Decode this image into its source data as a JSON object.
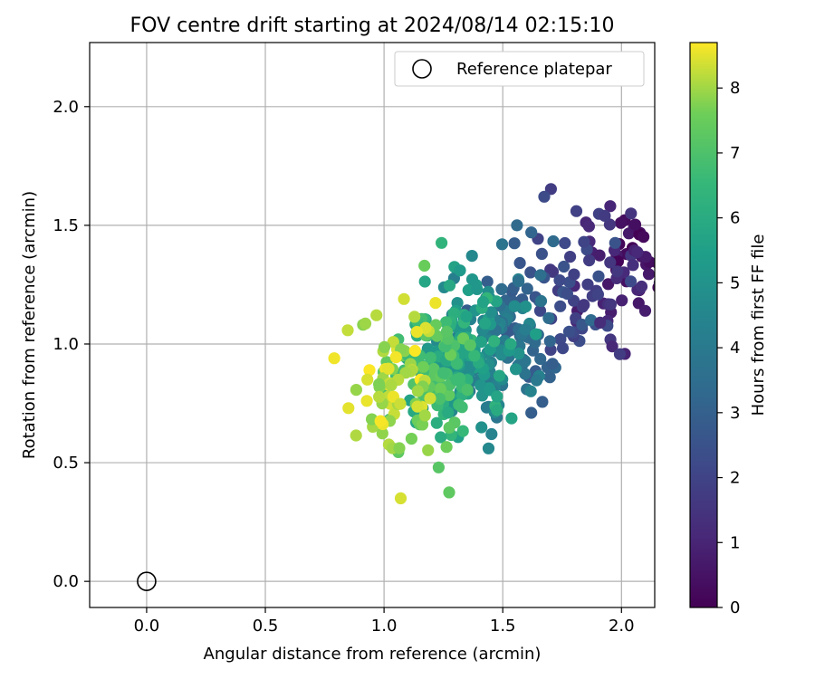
{
  "chart_data": {
    "type": "scatter",
    "title": "FOV centre drift starting at 2024/08/14 02:15:10",
    "xlabel": "Angular distance from reference (arcmin)",
    "ylabel": "Rotation from reference (arcmin)",
    "xlim": [
      -0.24,
      2.14
    ],
    "ylim": [
      -0.11,
      2.27
    ],
    "x_ticks": [
      "0.0",
      "0.5",
      "1.0",
      "1.5",
      "2.0"
    ],
    "y_ticks": [
      "0.0",
      "0.5",
      "1.0",
      "1.5",
      "2.0"
    ],
    "grid": true,
    "legend": {
      "position": "top-right",
      "label": "Reference platepar"
    },
    "reference_point": {
      "x": 0.0,
      "y": 0.0
    },
    "colorbar": {
      "label": "Hours from first FF file",
      "range": [
        0,
        8.7
      ],
      "ticks": [
        "0",
        "1",
        "2",
        "3",
        "4",
        "5",
        "6",
        "7",
        "8"
      ],
      "colormap": "viridis"
    },
    "clusters": [
      {
        "h0": 0.0,
        "h1": 0.7,
        "x": 2.06,
        "y": 1.36,
        "sx": 0.07,
        "sy": 0.11,
        "n": 26
      },
      {
        "h0": 0.7,
        "h1": 1.6,
        "x": 1.97,
        "y": 1.33,
        "sx": 0.08,
        "sy": 0.14,
        "n": 34
      },
      {
        "h0": 1.6,
        "h1": 2.6,
        "x": 1.78,
        "y": 1.22,
        "sx": 0.11,
        "sy": 0.17,
        "n": 46
      },
      {
        "h0": 2.6,
        "h1": 3.6,
        "x": 1.6,
        "y": 1.08,
        "sx": 0.1,
        "sy": 0.15,
        "n": 60
      },
      {
        "h0": 3.6,
        "h1": 4.6,
        "x": 1.47,
        "y": 1.02,
        "sx": 0.09,
        "sy": 0.15,
        "n": 70
      },
      {
        "h0": 4.6,
        "h1": 5.6,
        "x": 1.37,
        "y": 0.98,
        "sx": 0.09,
        "sy": 0.15,
        "n": 72
      },
      {
        "h0": 5.6,
        "h1": 6.6,
        "x": 1.29,
        "y": 0.94,
        "sx": 0.09,
        "sy": 0.16,
        "n": 72
      },
      {
        "h0": 6.6,
        "h1": 7.6,
        "x": 1.2,
        "y": 0.9,
        "sx": 0.09,
        "sy": 0.16,
        "n": 72
      },
      {
        "h0": 7.6,
        "h1": 8.7,
        "x": 1.04,
        "y": 0.86,
        "sx": 0.1,
        "sy": 0.16,
        "n": 66
      }
    ],
    "highlighted_points": [
      {
        "x": 1.07,
        "y": 0.35,
        "h": 8.4
      },
      {
        "x": 1.44,
        "y": 0.56,
        "h": 4.6
      },
      {
        "x": 1.62,
        "y": 0.71,
        "h": 2.9
      },
      {
        "x": 1.56,
        "y": 1.5,
        "h": 3.4
      },
      {
        "x": 1.62,
        "y": 1.47,
        "h": 3.2
      },
      {
        "x": 1.81,
        "y": 1.56,
        "h": 1.9
      },
      {
        "x": 1.93,
        "y": 1.54,
        "h": 1.7
      },
      {
        "x": 2.04,
        "y": 1.55,
        "h": 1.5
      },
      {
        "x": 2.1,
        "y": 1.14,
        "h": 0.8
      },
      {
        "x": 0.79,
        "y": 0.94,
        "h": 8.6
      },
      {
        "x": 0.85,
        "y": 0.73,
        "h": 8.5
      },
      {
        "x": 1.23,
        "y": 0.48,
        "h": 7.2
      },
      {
        "x": 1.32,
        "y": 1.31,
        "h": 5.3
      },
      {
        "x": 1.17,
        "y": 1.33,
        "h": 7.5
      },
      {
        "x": 1.91,
        "y": 1.09,
        "h": 1.3
      }
    ]
  }
}
